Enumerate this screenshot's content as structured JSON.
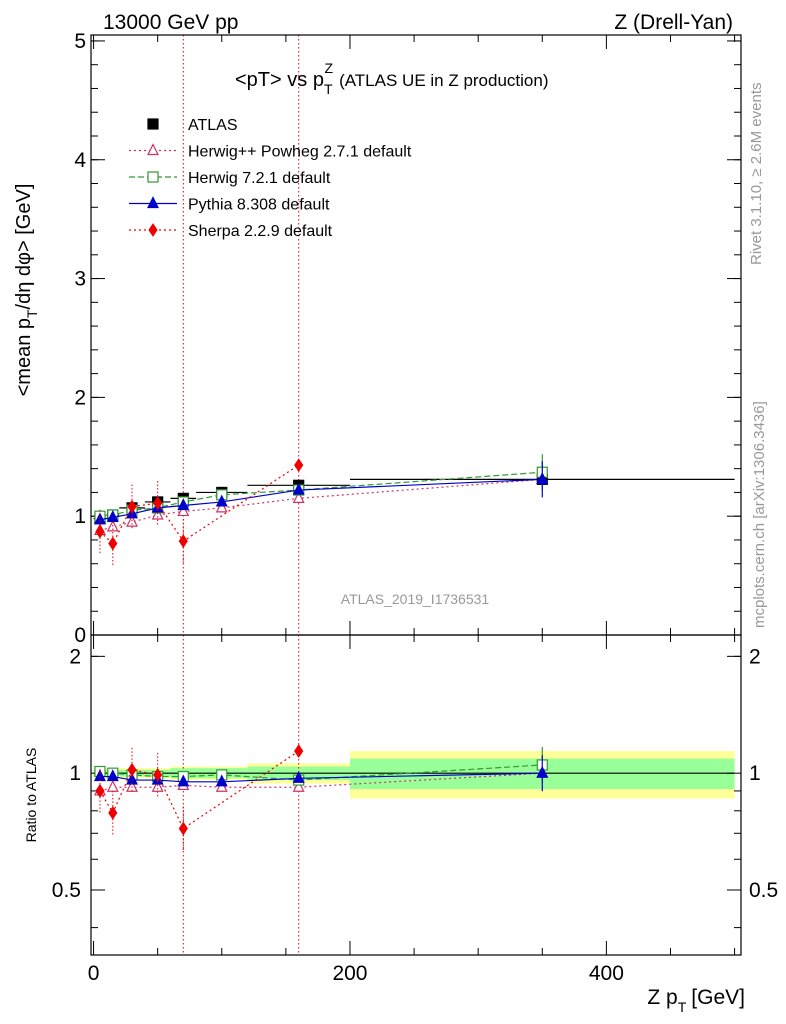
{
  "header": {
    "energy_label": "13000 GeV pp",
    "process_label": "Z (Drell-Yan)"
  },
  "side_labels": {
    "rivet": "Rivet 3.1.10, ≥ 2.6M events",
    "mcplots": "mcplots.cern.ch [arXiv:1306.3436]"
  },
  "chart_data": [
    {
      "type": "scatter",
      "panel": "main",
      "title": "<pT> vs p",
      "title_sub": "T",
      "title_sup": "Z",
      "title_suffix": "(ATLAS UE in Z production)",
      "ylabel": "<mean p",
      "ylabel_sub": "T",
      "ylabel_suffix": "/dη dφ> [GeV]",
      "watermark": "ATLAS_2019_I1736531",
      "xlim": [
        -2,
        505
      ],
      "ylim": [
        0,
        5.05
      ],
      "y_ticks": [
        0,
        1,
        2,
        3,
        4,
        5
      ],
      "y_tick_labels": [
        "0",
        "1",
        "2",
        "3",
        "4",
        "5"
      ],
      "legend_position": "top-left",
      "vertical_lines_x": [
        70,
        160
      ],
      "x": [
        5,
        15,
        30,
        50,
        70,
        100,
        160,
        350
      ],
      "x_err": [
        5,
        5,
        10,
        10,
        10,
        20,
        40,
        150
      ],
      "series": [
        {
          "name": "ATLAS",
          "color": "#000000",
          "marker": "filled-square",
          "values": [
            0.98,
            1.01,
            1.07,
            1.12,
            1.15,
            1.2,
            1.26,
            1.31
          ]
        },
        {
          "name": "Herwig++ Powheg 2.7.1 default",
          "color": "#cc3366",
          "marker": "open-triangle",
          "values": [
            0.88,
            0.91,
            0.95,
            1.01,
            1.04,
            1.07,
            1.15,
            1.31
          ]
        },
        {
          "name": "Herwig 7.2.1 default",
          "color": "#339933",
          "marker": "open-square",
          "values": [
            1.0,
            1.01,
            1.05,
            1.07,
            1.12,
            1.18,
            1.22,
            1.37
          ]
        },
        {
          "name": "Pythia 8.308 default",
          "color": "#0000cc",
          "marker": "filled-triangle",
          "values": [
            0.97,
            0.99,
            1.02,
            1.07,
            1.09,
            1.12,
            1.22,
            1.31
          ]
        },
        {
          "name": "Sherpa 2.2.9 default",
          "color": "#ee0000",
          "marker": "filled-diamond",
          "values": [
            0.87,
            0.77,
            1.08,
            1.11,
            0.79,
            null,
            1.43,
            null
          ]
        }
      ]
    },
    {
      "type": "scatter",
      "panel": "ratio",
      "ylabel": "Ratio to ATLAS",
      "xlabel": "Z p",
      "xlabel_sub": "T",
      "xlabel_suffix": "[GeV]",
      "xlim": [
        -2,
        505
      ],
      "ylim": [
        0.34,
        2.27
      ],
      "x_ticks": [
        0,
        200,
        400
      ],
      "x_tick_labels": [
        "0",
        "200",
        "400"
      ],
      "y_ticks": [
        0.5,
        1,
        2
      ],
      "y_tick_labels": [
        "0.5",
        "1",
        "2"
      ],
      "x": [
        5,
        15,
        30,
        50,
        70,
        100,
        160,
        350
      ],
      "band_x_edges": [
        0,
        10,
        20,
        40,
        60,
        80,
        120,
        200,
        500
      ],
      "band_stat": [
        0.02,
        0.02,
        0.02,
        0.02,
        0.03,
        0.03,
        0.04,
        0.09
      ],
      "band_total": [
        0.03,
        0.03,
        0.03,
        0.03,
        0.04,
        0.04,
        0.06,
        0.14
      ],
      "series": [
        {
          "name": "Herwig++ Powheg 2.7.1 default",
          "color": "#cc3366",
          "values": [
            0.9,
            0.92,
            0.92,
            0.92,
            0.93,
            0.92,
            0.92,
            1.0
          ]
        },
        {
          "name": "Herwig 7.2.1 default",
          "color": "#339933",
          "values": [
            1.01,
            1.0,
            0.99,
            0.98,
            0.98,
            0.99,
            0.96,
            1.05
          ]
        },
        {
          "name": "Pythia 8.308 default",
          "color": "#0000cc",
          "values": [
            0.98,
            0.98,
            0.96,
            0.96,
            0.95,
            0.95,
            0.97,
            1.0
          ]
        },
        {
          "name": "Sherpa 2.2.9 default",
          "color": "#ee0000",
          "values": [
            0.9,
            0.79,
            1.02,
            0.99,
            0.72,
            null,
            1.14,
            null
          ]
        }
      ]
    }
  ]
}
